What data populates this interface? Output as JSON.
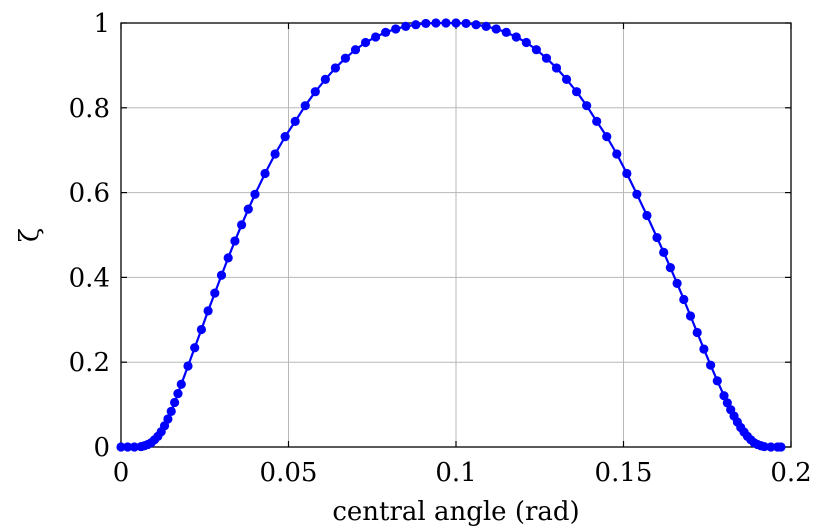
{
  "chart_data": {
    "type": "line",
    "xlabel": "central angle (rad)",
    "ylabel": "ζ",
    "xlim": [
      0,
      0.2
    ],
    "ylim": [
      0,
      1
    ],
    "xticks": [
      "0",
      "0.05",
      "0.1",
      "0.15",
      "0.2"
    ],
    "yticks": [
      "0",
      "0.2",
      "0.4",
      "0.6",
      "0.8",
      "1"
    ],
    "grid": true,
    "series": [
      {
        "color": "#0000ff",
        "marker": "circle",
        "x": [
          0,
          0.002,
          0.004,
          0.006,
          0.007,
          0.008,
          0.009,
          0.01,
          0.011,
          0.012,
          0.013,
          0.014,
          0.015,
          0.016,
          0.017,
          0.018,
          0.02,
          0.022,
          0.024,
          0.026,
          0.028,
          0.03,
          0.032,
          0.034,
          0.036,
          0.038,
          0.04,
          0.043,
          0.046,
          0.049,
          0.052,
          0.055,
          0.058,
          0.061,
          0.064,
          0.067,
          0.07,
          0.073,
          0.076,
          0.079,
          0.082,
          0.085,
          0.088,
          0.091,
          0.094,
          0.097,
          0.1,
          0.103,
          0.106,
          0.109,
          0.112,
          0.115,
          0.118,
          0.121,
          0.124,
          0.127,
          0.13,
          0.133,
          0.136,
          0.139,
          0.142,
          0.145,
          0.148,
          0.151,
          0.154,
          0.157,
          0.16,
          0.162,
          0.164,
          0.166,
          0.168,
          0.17,
          0.172,
          0.174,
          0.176,
          0.178,
          0.18,
          0.181,
          0.182,
          0.183,
          0.184,
          0.185,
          0.186,
          0.187,
          0.188,
          0.189,
          0.19,
          0.191,
          0.192,
          0.194,
          0.196,
          0.197
        ],
        "y": [
          0,
          0,
          0,
          0.001,
          0.003,
          0.006,
          0.01,
          0.017,
          0.025,
          0.036,
          0.05,
          0.066,
          0.084,
          0.105,
          0.126,
          0.148,
          0.191,
          0.234,
          0.277,
          0.321,
          0.363,
          0.405,
          0.446,
          0.486,
          0.524,
          0.561,
          0.596,
          0.645,
          0.691,
          0.732,
          0.768,
          0.805,
          0.838,
          0.867,
          0.894,
          0.917,
          0.937,
          0.954,
          0.967,
          0.978,
          0.986,
          0.992,
          0.996,
          0.999,
          1.0,
          1.0,
          1.0,
          0.999,
          0.996,
          0.992,
          0.986,
          0.978,
          0.967,
          0.954,
          0.937,
          0.917,
          0.894,
          0.867,
          0.838,
          0.805,
          0.768,
          0.732,
          0.691,
          0.645,
          0.596,
          0.546,
          0.494,
          0.459,
          0.423,
          0.386,
          0.348,
          0.309,
          0.27,
          0.231,
          0.193,
          0.156,
          0.121,
          0.104,
          0.088,
          0.073,
          0.059,
          0.046,
          0.035,
          0.025,
          0.017,
          0.01,
          0.006,
          0.003,
          0.001,
          0,
          0,
          0
        ]
      }
    ]
  }
}
